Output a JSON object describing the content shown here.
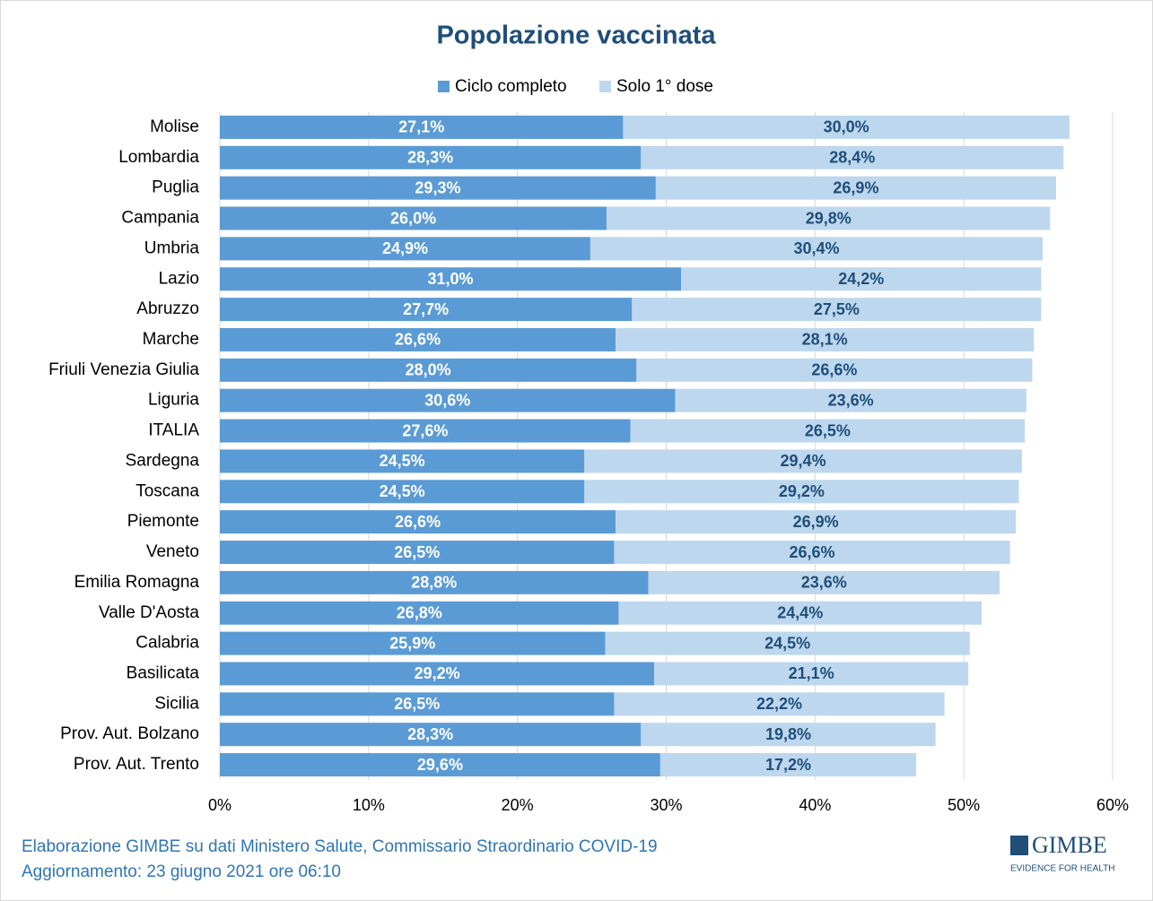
{
  "chart_data": {
    "type": "stacked-bar-horizontal",
    "title": "Popolazione vaccinata",
    "categories": [
      "Molise",
      "Lombardia",
      "Puglia",
      "Campania",
      "Umbria",
      "Lazio",
      "Abruzzo",
      "Marche",
      "Friuli Venezia Giulia",
      "Liguria",
      "ITALIA",
      "Sardegna",
      "Toscana",
      "Piemonte",
      "Veneto",
      "Emilia Romagna",
      "Valle D'Aosta",
      "Calabria",
      "Basilicata",
      "Sicilia",
      "Prov. Aut. Bolzano",
      "Prov. Aut. Trento"
    ],
    "series": [
      {
        "name": "Ciclo completo",
        "color": "#5b9bd5",
        "values": [
          27.1,
          28.3,
          29.3,
          26.0,
          24.9,
          31.0,
          27.7,
          26.6,
          28.0,
          30.6,
          27.6,
          24.5,
          24.5,
          26.6,
          26.5,
          28.8,
          26.8,
          25.9,
          29.2,
          26.5,
          28.3,
          29.6
        ],
        "value_labels": [
          "27,1%",
          "28,3%",
          "29,3%",
          "26,0%",
          "24,9%",
          "31,0%",
          "27,7%",
          "26,6%",
          "28,0%",
          "30,6%",
          "27,6%",
          "24,5%",
          "24,5%",
          "26,6%",
          "26,5%",
          "28,8%",
          "26,8%",
          "25,9%",
          "29,2%",
          "26,5%",
          "28,3%",
          "29,6%"
        ]
      },
      {
        "name": "Solo 1° dose",
        "color": "#bdd7ee",
        "values": [
          30.0,
          28.4,
          26.9,
          29.8,
          30.4,
          24.2,
          27.5,
          28.1,
          26.6,
          23.6,
          26.5,
          29.4,
          29.2,
          26.9,
          26.6,
          23.6,
          24.4,
          24.5,
          21.1,
          22.2,
          19.8,
          17.2
        ],
        "value_labels": [
          "30,0%",
          "28,4%",
          "26,9%",
          "29,8%",
          "30,4%",
          "24,2%",
          "27,5%",
          "28,1%",
          "26,6%",
          "23,6%",
          "26,5%",
          "29,4%",
          "29,2%",
          "26,9%",
          "26,6%",
          "23,6%",
          "24,4%",
          "24,5%",
          "21,1%",
          "22,2%",
          "19,8%",
          "17,2%"
        ]
      }
    ],
    "xlim": [
      0,
      60
    ],
    "xticks": [
      {
        "value": 0,
        "label": "0%"
      },
      {
        "value": 10,
        "label": "10%"
      },
      {
        "value": 20,
        "label": "20%"
      },
      {
        "value": 30,
        "label": "30%"
      },
      {
        "value": 40,
        "label": "40%"
      },
      {
        "value": 50,
        "label": "50%"
      },
      {
        "value": 60,
        "label": "60%"
      }
    ],
    "grid": true,
    "legend": "top"
  },
  "footer": {
    "line1": "Elaborazione GIMBE su dati Ministero Salute, Commissario Straordinario COVID-19",
    "line2": "Aggiornamento: 23 giugno 2021 ore 06:10"
  },
  "logo": {
    "name": "GIMBE",
    "tagline": "EVIDENCE FOR HEALTH"
  }
}
